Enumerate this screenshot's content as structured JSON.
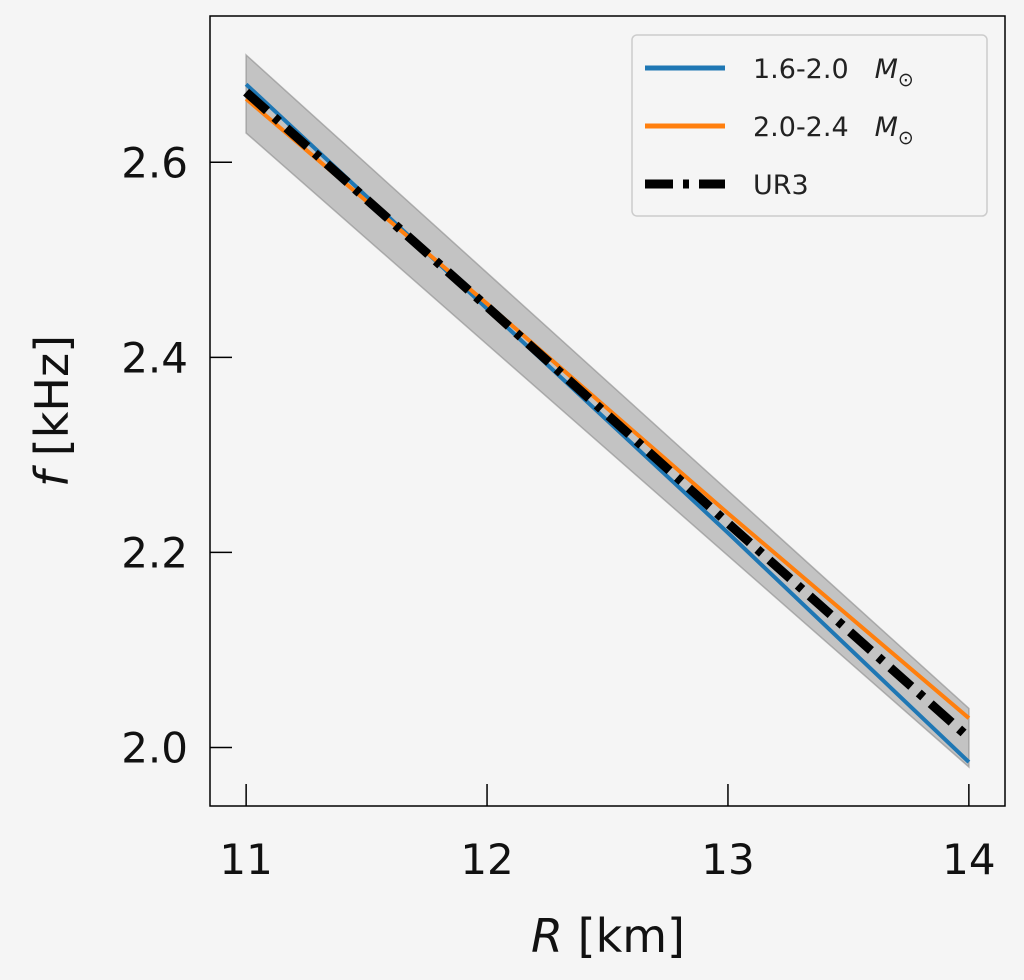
{
  "chart_data": {
    "type": "line",
    "xlabel_symbol": "R",
    "xlabel_unit": "[km]",
    "ylabel_symbol": "f",
    "ylabel_unit": "[kHz]",
    "xlim": [
      10.85,
      14.15
    ],
    "ylim": [
      1.94,
      2.75
    ],
    "xticks": [
      11,
      12,
      13,
      14
    ],
    "yticks": [
      2.0,
      2.2,
      2.4,
      2.6
    ],
    "xtick_labels": [
      "11",
      "12",
      "13",
      "14"
    ],
    "ytick_labels": [
      "2.0",
      "2.2",
      "2.4",
      "2.6"
    ],
    "legend_position": "top-right",
    "band": {
      "x": [
        11,
        14
      ],
      "upper": [
        2.71,
        2.04
      ],
      "lower": [
        2.63,
        1.98
      ],
      "color": "#a8a8a8"
    },
    "series": [
      {
        "name": "1.6-2.0",
        "unit_symbol": "M",
        "unit_sub": "⊙",
        "color": "#1f77b4",
        "style": "solid",
        "x": [
          11,
          12,
          13,
          14
        ],
        "y": [
          2.68,
          2.45,
          2.22,
          1.985
        ]
      },
      {
        "name": "2.0-2.4",
        "unit_symbol": "M",
        "unit_sub": "⊙",
        "color": "#ff7f0e",
        "style": "solid",
        "x": [
          11,
          12,
          13,
          14
        ],
        "y": [
          2.665,
          2.455,
          2.24,
          2.03
        ]
      },
      {
        "name": "UR3",
        "color": "#000000",
        "style": "dashdot",
        "x": [
          11,
          12,
          13,
          14
        ],
        "y": [
          2.672,
          2.452,
          2.23,
          2.01
        ]
      }
    ]
  }
}
